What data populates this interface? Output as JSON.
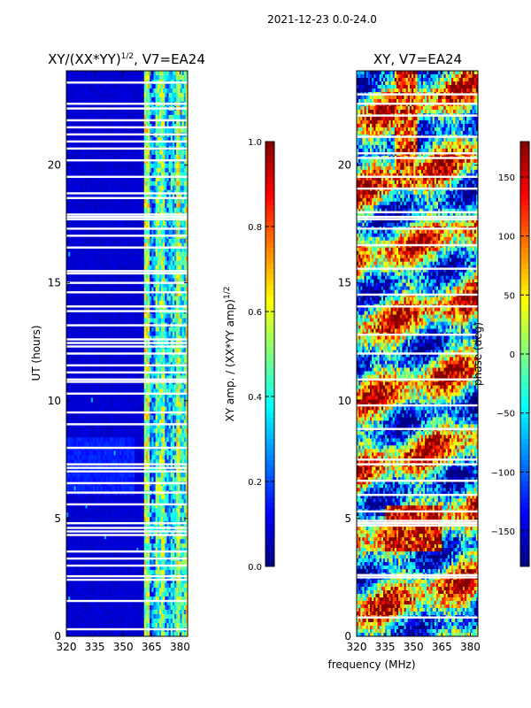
{
  "suptitle": "2021-12-23 0.0-24.0",
  "left_title": {
    "main": "XY/(XX*YY)",
    "sup": "1/2",
    "rest": ", V7=EA24"
  },
  "right_title": "XY, V7=EA24",
  "ylabel": "UT (hours)",
  "xlabel": "frequency (MHz)",
  "cb1_label": {
    "main": "XY amp. / (XX*YY amp)",
    "sup": "1/2"
  },
  "cb2_label": "phase (deg)",
  "colors": {
    "background": "#ffffff",
    "low": "#00008f",
    "high": "#800000"
  },
  "chart_data": [
    {
      "type": "heatmap",
      "name": "normalized-amplitude",
      "title": "XY/(XX*YY)^1/2, V7=EA24",
      "xlabel": "",
      "ylabel": "UT (hours)",
      "xlim": [
        320,
        384
      ],
      "ylim": [
        0,
        24
      ],
      "xticks": [
        "320",
        "335",
        "350",
        "365",
        "380"
      ],
      "yticks": [
        "0",
        "5",
        "10",
        "15",
        "20"
      ],
      "colorscale": "jet",
      "zlim": [
        0.0,
        1.0
      ],
      "colorbar_ticks": [
        "0.0",
        "0.2",
        "0.4",
        "0.6",
        "0.8",
        "1.0"
      ],
      "colorbar_label": "XY amp. / (XX*YY amp)^1/2",
      "note": "low values (~0.05) below ~361 MHz; bright band ~0.3-0.6 between ~362 and ~383 MHz",
      "flagged_ut_hours": [
        0.3,
        1.5,
        2.4,
        2.55,
        3.0,
        3.3,
        3.6,
        4.3,
        4.45,
        4.6,
        4.8,
        5.6,
        6.1,
        6.5,
        7.0,
        7.15,
        7.3,
        8.0,
        9.0,
        9.5,
        10.3,
        10.8,
        10.9,
        11.2,
        11.5,
        12.0,
        12.3,
        12.45,
        12.6,
        13.2,
        13.8,
        14.0,
        14.6,
        15.0,
        15.4,
        15.5,
        16.5,
        17.0,
        17.3,
        17.7,
        17.8,
        17.9,
        18.6,
        18.8,
        19.5,
        20.2,
        20.7,
        21.0,
        21.3,
        21.6,
        21.9,
        22.4,
        22.6,
        23.5
      ]
    },
    {
      "type": "heatmap",
      "name": "phase",
      "title": "XY, V7=EA24",
      "xlabel": "frequency (MHz)",
      "ylabel": "",
      "xlim": [
        320,
        384
      ],
      "ylim": [
        0,
        24
      ],
      "xticks": [
        "320",
        "335",
        "350",
        "365",
        "380"
      ],
      "yticks": [
        "0",
        "5",
        "10",
        "15",
        "20"
      ],
      "colorscale": "jet",
      "zlim": [
        -180,
        180
      ],
      "colorbar_ticks": [
        "150",
        "100",
        "50",
        "0",
        "−50",
        "−100",
        "−150"
      ],
      "colorbar_label": "phase (deg)",
      "note": "phase varies broadly across -180..180 with horizontal banding; notable red band ~18.5-20.5 h",
      "flagged_ut_hours": [
        0.8,
        2.5,
        2.6,
        4.7,
        4.8,
        4.9,
        5.3,
        6.0,
        6.6,
        7.3,
        7.5,
        8.8,
        9.8,
        10.9,
        12.0,
        12.8,
        14.0,
        14.5,
        15.6,
        16.6,
        17.3,
        17.7,
        17.8,
        18.0,
        19.0,
        19.5,
        20.3,
        20.5,
        21.2,
        22.1,
        22.6,
        23.0
      ]
    }
  ]
}
